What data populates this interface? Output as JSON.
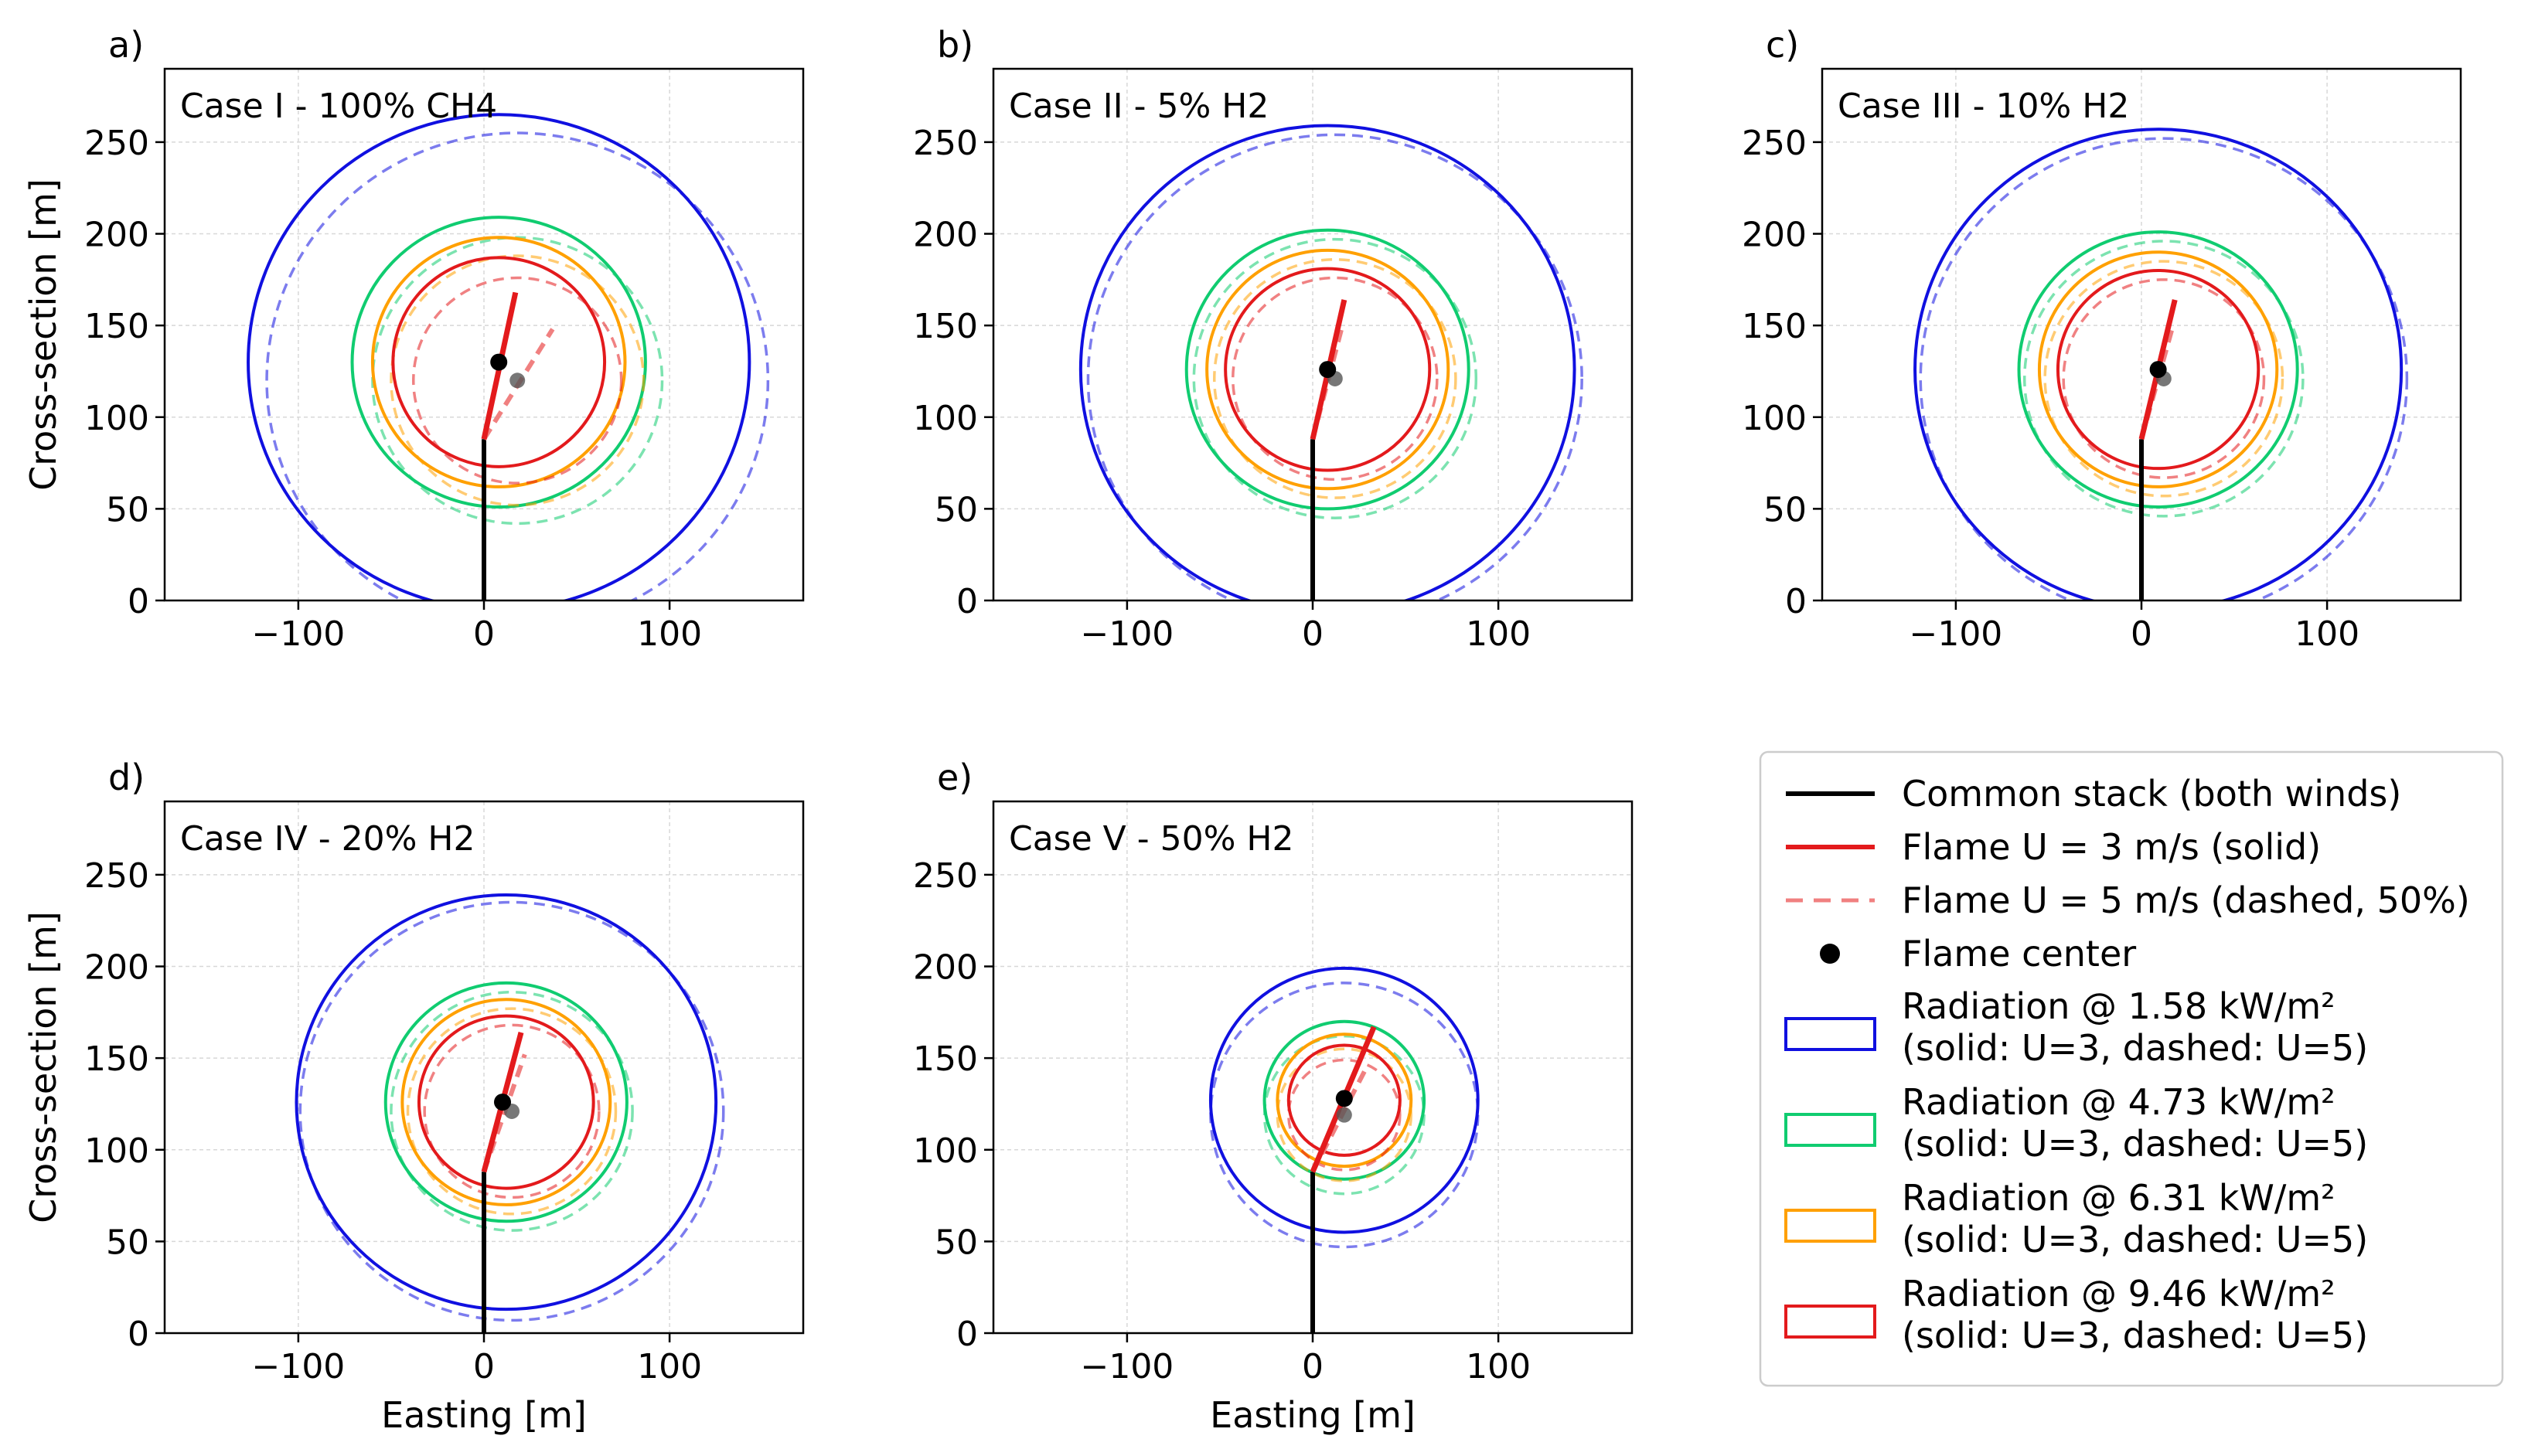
{
  "legend": {
    "items": [
      {
        "key": "stack",
        "label": "Common stack (both winds)",
        "color": "#000000"
      },
      {
        "key": "flame_solid",
        "label": "Flame U = 3 m/s (solid)",
        "color": "#e31a1c"
      },
      {
        "key": "flame_dashed",
        "label": "Flame U = 5 m/s (dashed, 50%)",
        "color": "#f08080"
      },
      {
        "key": "center",
        "label": "Flame center",
        "color": "#000000"
      },
      {
        "key": "r158",
        "label": "Radiation @ 1.58 kW/m²",
        "label2": "(solid: U=3, dashed: U=5)",
        "color": "#1010e0"
      },
      {
        "key": "r473",
        "label": "Radiation @ 4.73 kW/m²",
        "label2": "(solid: U=3, dashed: U=5)",
        "color": "#10cc70"
      },
      {
        "key": "r631",
        "label": "Radiation @ 6.31 kW/m²",
        "label2": "(solid: U=3, dashed: U=5)",
        "color": "#ffa000"
      },
      {
        "key": "r946",
        "label": "Radiation @ 9.46 kW/m²",
        "label2": "(solid: U=3, dashed: U=5)",
        "color": "#e31a1c"
      }
    ]
  },
  "chart_data": [
    {
      "type": "line",
      "panel_label": "a)",
      "title": "Case I  - 100% CH4",
      "xlabel": "",
      "ylabel": "Cross-section [m]",
      "xlim": [
        -172,
        172
      ],
      "ylim": [
        0,
        290
      ],
      "xticks": [
        -100,
        0,
        100
      ],
      "yticks": [
        0,
        50,
        100,
        150,
        200,
        250
      ],
      "xtick_labels": [
        "−100",
        "0",
        "100"
      ],
      "ytick_labels": [
        "0",
        "50",
        "100",
        "150",
        "200",
        "250"
      ],
      "grid": true,
      "stack": {
        "x": [
          0,
          0
        ],
        "y": [
          0,
          88
        ]
      },
      "flame_u3": {
        "x": [
          0,
          17
        ],
        "y": [
          88,
          168
        ]
      },
      "flame_u5": {
        "x": [
          0,
          37
        ],
        "y": [
          88,
          148
        ]
      },
      "flame_center_u3": [
        8,
        130
      ],
      "flame_center_u5": [
        18,
        120
      ],
      "radiation": [
        {
          "level": "1.58 kW/m²",
          "color": "#1010e0",
          "u3": {
            "center": [
              8,
              130
            ],
            "r": 135
          },
          "u5": {
            "center": [
              18,
              120
            ],
            "r": 135
          }
        },
        {
          "level": "4.73 kW/m²",
          "color": "#10cc70",
          "u3": {
            "center": [
              8,
              130
            ],
            "r": 79
          },
          "u5": {
            "center": [
              18,
              120
            ],
            "r": 78
          }
        },
        {
          "level": "6.31 kW/m²",
          "color": "#ffa000",
          "u3": {
            "center": [
              8,
              130
            ],
            "r": 68
          },
          "u5": {
            "center": [
              18,
              120
            ],
            "r": 68
          }
        },
        {
          "level": "9.46 kW/m²",
          "color": "#e31a1c",
          "u3": {
            "center": [
              8,
              130
            ],
            "r": 57
          },
          "u5": {
            "center": [
              18,
              120
            ],
            "r": 56
          }
        }
      ]
    },
    {
      "type": "line",
      "panel_label": "b)",
      "title": "Case II - 5% H2",
      "xlabel": "",
      "ylabel": "",
      "xlim": [
        -172,
        172
      ],
      "ylim": [
        0,
        290
      ],
      "xticks": [
        -100,
        0,
        100
      ],
      "yticks": [
        0,
        50,
        100,
        150,
        200,
        250
      ],
      "xtick_labels": [
        "−100",
        "0",
        "100"
      ],
      "ytick_labels": [
        "0",
        "50",
        "100",
        "150",
        "200",
        "250"
      ],
      "grid": true,
      "stack": {
        "x": [
          0,
          0
        ],
        "y": [
          0,
          88
        ]
      },
      "flame_u3": {
        "x": [
          0,
          17
        ],
        "y": [
          88,
          164
        ]
      },
      "flame_u5": {
        "x": [
          0,
          16
        ],
        "y": [
          88,
          150
        ]
      },
      "flame_center_u3": [
        8,
        126
      ],
      "flame_center_u5": [
        12,
        121
      ],
      "radiation": [
        {
          "level": "1.58 kW/m²",
          "color": "#1010e0",
          "u3": {
            "center": [
              8,
              126
            ],
            "r": 133
          },
          "u5": {
            "center": [
              12,
              121
            ],
            "r": 133
          }
        },
        {
          "level": "4.73 kW/m²",
          "color": "#10cc70",
          "u3": {
            "center": [
              8,
              126
            ],
            "r": 76
          },
          "u5": {
            "center": [
              12,
              121
            ],
            "r": 76
          }
        },
        {
          "level": "6.31 kW/m²",
          "color": "#ffa000",
          "u3": {
            "center": [
              8,
              126
            ],
            "r": 65
          },
          "u5": {
            "center": [
              12,
              121
            ],
            "r": 65
          }
        },
        {
          "level": "9.46 kW/m²",
          "color": "#e31a1c",
          "u3": {
            "center": [
              8,
              126
            ],
            "r": 55
          },
          "u5": {
            "center": [
              12,
              121
            ],
            "r": 55
          }
        }
      ]
    },
    {
      "type": "line",
      "panel_label": "c)",
      "title": "Case III - 10% H2",
      "xlabel": "",
      "ylabel": "",
      "xlim": [
        -172,
        172
      ],
      "ylim": [
        0,
        290
      ],
      "xticks": [
        -100,
        0,
        100
      ],
      "yticks": [
        0,
        50,
        100,
        150,
        200,
        250
      ],
      "xtick_labels": [
        "−100",
        "0",
        "100"
      ],
      "ytick_labels": [
        "0",
        "50",
        "100",
        "150",
        "200",
        "250"
      ],
      "grid": true,
      "stack": {
        "x": [
          0,
          0
        ],
        "y": [
          0,
          88
        ]
      },
      "flame_u3": {
        "x": [
          0,
          18
        ],
        "y": [
          88,
          164
        ]
      },
      "flame_u5": {
        "x": [
          0,
          17
        ],
        "y": [
          88,
          150
        ]
      },
      "flame_center_u3": [
        9,
        126
      ],
      "flame_center_u5": [
        12,
        121
      ],
      "radiation": [
        {
          "level": "1.58 kW/m²",
          "color": "#1010e0",
          "u3": {
            "center": [
              9,
              126
            ],
            "r": 131
          },
          "u5": {
            "center": [
              12,
              121
            ],
            "r": 131
          }
        },
        {
          "level": "4.73 kW/m²",
          "color": "#10cc70",
          "u3": {
            "center": [
              9,
              126
            ],
            "r": 75
          },
          "u5": {
            "center": [
              12,
              121
            ],
            "r": 75
          }
        },
        {
          "level": "6.31 kW/m²",
          "color": "#ffa000",
          "u3": {
            "center": [
              9,
              126
            ],
            "r": 64
          },
          "u5": {
            "center": [
              12,
              121
            ],
            "r": 64
          }
        },
        {
          "level": "9.46 kW/m²",
          "color": "#e31a1c",
          "u3": {
            "center": [
              9,
              126
            ],
            "r": 54
          },
          "u5": {
            "center": [
              12,
              121
            ],
            "r": 54
          }
        }
      ]
    },
    {
      "type": "line",
      "panel_label": "d)",
      "title": "Case IV - 20% H2",
      "xlabel": "Easting [m]",
      "ylabel": "Cross-section [m]",
      "xlim": [
        -172,
        172
      ],
      "ylim": [
        0,
        290
      ],
      "xticks": [
        -100,
        0,
        100
      ],
      "yticks": [
        0,
        50,
        100,
        150,
        200,
        250
      ],
      "xtick_labels": [
        "−100",
        "0",
        "100"
      ],
      "ytick_labels": [
        "0",
        "50",
        "100",
        "150",
        "200",
        "250"
      ],
      "grid": true,
      "stack": {
        "x": [
          0,
          0
        ],
        "y": [
          0,
          88
        ]
      },
      "flame_u3": {
        "x": [
          0,
          20
        ],
        "y": [
          88,
          164
        ]
      },
      "flame_u5": {
        "x": [
          0,
          22
        ],
        "y": [
          88,
          152
        ]
      },
      "flame_center_u3": [
        10,
        126
      ],
      "flame_center_u5": [
        15,
        121
      ],
      "radiation": [
        {
          "level": "1.58 kW/m²",
          "color": "#1010e0",
          "u3": {
            "center": [
              12,
              126
            ],
            "r": 113
          },
          "u5": {
            "center": [
              15,
              121
            ],
            "r": 114
          }
        },
        {
          "level": "4.73 kW/m²",
          "color": "#10cc70",
          "u3": {
            "center": [
              12,
              126
            ],
            "r": 65
          },
          "u5": {
            "center": [
              15,
              121
            ],
            "r": 65
          }
        },
        {
          "level": "6.31 kW/m²",
          "color": "#ffa000",
          "u3": {
            "center": [
              12,
              126
            ],
            "r": 56
          },
          "u5": {
            "center": [
              15,
              121
            ],
            "r": 56
          }
        },
        {
          "level": "9.46 kW/m²",
          "color": "#e31a1c",
          "u3": {
            "center": [
              12,
              126
            ],
            "r": 47
          },
          "u5": {
            "center": [
              15,
              121
            ],
            "r": 47
          }
        }
      ]
    },
    {
      "type": "line",
      "panel_label": "e)",
      "title": "Case V  - 50% H2",
      "xlabel": "Easting [m]",
      "ylabel": "",
      "xlim": [
        -172,
        172
      ],
      "ylim": [
        0,
        290
      ],
      "xticks": [
        -100,
        0,
        100
      ],
      "yticks": [
        0,
        50,
        100,
        150,
        200,
        250
      ],
      "xtick_labels": [
        "−100",
        "0",
        "100"
      ],
      "ytick_labels": [
        "0",
        "50",
        "100",
        "150",
        "200",
        "250"
      ],
      "grid": true,
      "stack": {
        "x": [
          0,
          0
        ],
        "y": [
          0,
          88
        ]
      },
      "flame_u3": {
        "x": [
          0,
          33
        ],
        "y": [
          88,
          167
        ]
      },
      "flame_u5": {
        "x": [
          0,
          28
        ],
        "y": [
          88,
          143
        ]
      },
      "flame_center_u3": [
        17,
        128
      ],
      "flame_center_u5": [
        17,
        119
      ],
      "radiation": [
        {
          "level": "1.58 kW/m²",
          "color": "#1010e0",
          "u3": {
            "center": [
              17,
              127
            ],
            "r": 72
          },
          "u5": {
            "center": [
              17,
              119
            ],
            "r": 72
          }
        },
        {
          "level": "4.73 kW/m²",
          "color": "#10cc70",
          "u3": {
            "center": [
              17,
              127
            ],
            "r": 43
          },
          "u5": {
            "center": [
              17,
              119
            ],
            "r": 43
          }
        },
        {
          "level": "6.31 kW/m²",
          "color": "#ffa000",
          "u3": {
            "center": [
              17,
              127
            ],
            "r": 36
          },
          "u5": {
            "center": [
              17,
              119
            ],
            "r": 36
          }
        },
        {
          "level": "9.46 kW/m²",
          "color": "#e31a1c",
          "u3": {
            "center": [
              17,
              127
            ],
            "r": 30
          },
          "u5": {
            "center": [
              17,
              119
            ],
            "r": 30
          }
        }
      ]
    }
  ]
}
